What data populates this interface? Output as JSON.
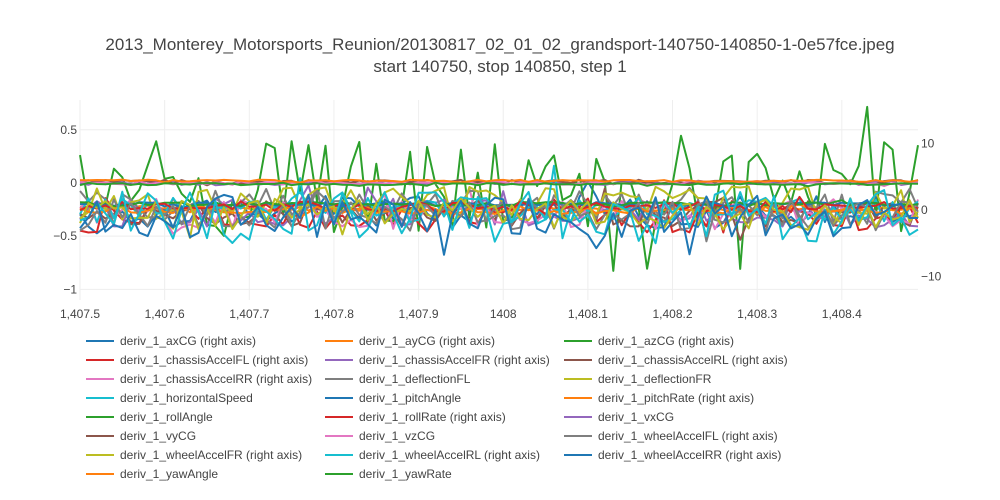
{
  "chart_data": {
    "type": "line",
    "title": "2013_Monterey_Motorsports_Reunion/20130817_02_01_02_grandsport-140750-140850-1-0e57fce.jpeg",
    "subtitle": "start 140750, stop 140850, step 1",
    "xlim": [
      1407.5,
      1408.49
    ],
    "ylim_left": [
      -1.1,
      0.78
    ],
    "ylim_right": [
      -13.5,
      16.5
    ],
    "x_ticks": [
      {
        "value": 1407.5,
        "label": "1,407.5"
      },
      {
        "value": 1407.6,
        "label": "1,407.6"
      },
      {
        "value": 1407.7,
        "label": "1,407.7"
      },
      {
        "value": 1407.8,
        "label": "1,407.8"
      },
      {
        "value": 1407.9,
        "label": "1,407.9"
      },
      {
        "value": 1408.0,
        "label": "1408"
      },
      {
        "value": 1408.1,
        "label": "1,408.1"
      },
      {
        "value": 1408.2,
        "label": "1,408.2"
      },
      {
        "value": 1408.3,
        "label": "1,408.3"
      },
      {
        "value": 1408.4,
        "label": "1,408.4"
      }
    ],
    "y_ticks_left": [
      {
        "value": 0.5,
        "label": "0.5"
      },
      {
        "value": 0,
        "label": "0"
      },
      {
        "value": -0.5,
        "label": "−0.5"
      },
      {
        "value": -1,
        "label": "−1"
      }
    ],
    "y_ticks_right": [
      {
        "value": 10,
        "label": "10"
      },
      {
        "value": 0,
        "label": "0"
      },
      {
        "value": -10,
        "label": "−10"
      }
    ],
    "grid": true,
    "legend_position": "bottom",
    "series": [
      {
        "name": "deriv_1_axCG (right axis)",
        "color": "#1f77b4",
        "axis": "right",
        "base": -0.3,
        "amp": 2.4,
        "seed": 1
      },
      {
        "name": "deriv_1_ayCG (right axis)",
        "color": "#ff7f0e",
        "axis": "right",
        "base": 0.2,
        "amp": 0.4,
        "seed": 2
      },
      {
        "name": "deriv_1_azCG (right axis)",
        "color": "#2ca02c",
        "axis": "right",
        "base": 3.0,
        "amp": 7.5,
        "seed": 3
      },
      {
        "name": "deriv_1_chassisAccelFL (right axis)",
        "color": "#d62728",
        "axis": "right",
        "base": -0.8,
        "amp": 2.6,
        "seed": 4
      },
      {
        "name": "deriv_1_chassisAccelFR (right axis)",
        "color": "#9467bd",
        "axis": "right",
        "base": -0.4,
        "amp": 2.2,
        "seed": 5
      },
      {
        "name": "deriv_1_chassisAccelRL (right axis)",
        "color": "#8c564b",
        "axis": "right",
        "base": -0.5,
        "amp": 2.0,
        "seed": 6
      },
      {
        "name": "deriv_1_chassisAccelRR (right axis)",
        "color": "#e377c2",
        "axis": "right",
        "base": -0.6,
        "amp": 2.3,
        "seed": 7
      },
      {
        "name": "deriv_1_deflectionFL",
        "color": "#7f7f7f",
        "axis": "left",
        "base": -0.22,
        "amp": 0.18,
        "seed": 8
      },
      {
        "name": "deriv_1_deflectionFR",
        "color": "#bcbd22",
        "axis": "left",
        "base": -0.2,
        "amp": 0.17,
        "seed": 9
      },
      {
        "name": "deriv_1_horizontalSpeed",
        "color": "#17becf",
        "axis": "left",
        "base": -0.25,
        "amp": 0.12,
        "seed": 10
      },
      {
        "name": "deriv_1_pitchAngle",
        "color": "#1f77b4",
        "axis": "left",
        "base": -0.2,
        "amp": 0.02,
        "seed": 11
      },
      {
        "name": "deriv_1_pitchRate (right axis)",
        "color": "#ff7f0e",
        "axis": "right",
        "base": 0.0,
        "amp": 0.6,
        "seed": 12
      },
      {
        "name": "deriv_1_rollAngle",
        "color": "#2ca02c",
        "axis": "left",
        "base": -0.2,
        "amp": 0.02,
        "seed": 13
      },
      {
        "name": "deriv_1_rollRate (right axis)",
        "color": "#d62728",
        "axis": "right",
        "base": 0.5,
        "amp": 0.8,
        "seed": 14
      },
      {
        "name": "deriv_1_vxCG",
        "color": "#9467bd",
        "axis": "left",
        "base": 0.0,
        "amp": 0.02,
        "seed": 15
      },
      {
        "name": "deriv_1_vyCG",
        "color": "#8c564b",
        "axis": "left",
        "base": 0.01,
        "amp": 0.02,
        "seed": 16
      },
      {
        "name": "deriv_1_vzCG",
        "color": "#e377c2",
        "axis": "left",
        "base": 0.0,
        "amp": 0.02,
        "seed": 17
      },
      {
        "name": "deriv_1_wheelAccelFL (right axis)",
        "color": "#7f7f7f",
        "axis": "right",
        "base": -0.7,
        "amp": 2.4,
        "seed": 18
      },
      {
        "name": "deriv_1_wheelAccelFR (right axis)",
        "color": "#bcbd22",
        "axis": "right",
        "base": -0.6,
        "amp": 2.4,
        "seed": 19
      },
      {
        "name": "deriv_1_wheelAccelRL (right axis)",
        "color": "#17becf",
        "axis": "right",
        "base": -1.0,
        "amp": 4.0,
        "seed": 20
      },
      {
        "name": "deriv_1_wheelAccelRR (right axis)",
        "color": "#1f77b4",
        "axis": "right",
        "base": -0.9,
        "amp": 3.2,
        "seed": 21
      },
      {
        "name": "deriv_1_yawAngle",
        "color": "#ff7f0e",
        "axis": "left",
        "base": 0.02,
        "amp": 0.01,
        "seed": 22
      },
      {
        "name": "deriv_1_yawRate",
        "color": "#2ca02c",
        "axis": "left",
        "base": -0.01,
        "amp": 0.01,
        "seed": 23
      }
    ]
  }
}
